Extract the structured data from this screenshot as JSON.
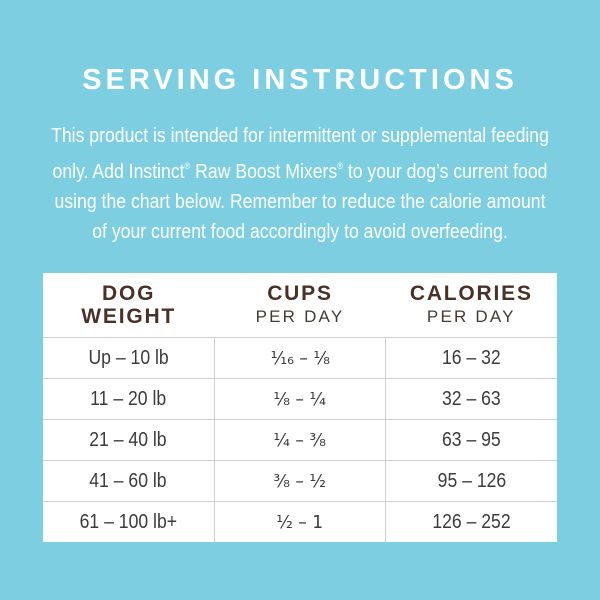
{
  "colors": {
    "background": "#7ECEE2",
    "panel": "#FFFFFF",
    "title_text": "#FFFFFF",
    "header_text": "#4A3128",
    "cell_text": "#3B3B3B",
    "divider": "#CFCFCF"
  },
  "title": "SERVING INSTRUCTIONS",
  "paragraph": {
    "lines": [
      [
        {
          "text": "This product is intended for intermittent or supplemental feeding"
        }
      ],
      [
        {
          "text": "only. Add Instinct"
        },
        {
          "text": "®",
          "sup": true
        },
        {
          "text": " Raw Boost Mixers"
        },
        {
          "text": "®",
          "sup": true
        },
        {
          "text": " to your dog’s current food"
        }
      ],
      [
        {
          "text": "using the chart below. Remember to reduce the calorie amount"
        }
      ],
      [
        {
          "text": "of your current food accordingly to avoid overfeeding."
        }
      ]
    ]
  },
  "table": {
    "columns": [
      {
        "main": "DOG\nWEIGHT",
        "sub": ""
      },
      {
        "main": "CUPS",
        "sub": "PER DAY"
      },
      {
        "main": "CALORIES",
        "sub": "PER DAY"
      }
    ],
    "rows": [
      {
        "weight": "Up – 10 lb",
        "cups": "¹⁄₁₆ – ¹⁄₈",
        "calories": "16 – 32"
      },
      {
        "weight": "11 – 20 lb",
        "cups": "¹⁄₈ – ¹⁄₄",
        "calories": "32 – 63"
      },
      {
        "weight": "21 – 40 lb",
        "cups": "¹⁄₄ – ³⁄₈",
        "calories": "63 – 95"
      },
      {
        "weight": "41 – 60 lb",
        "cups": "³⁄₈ – ¹⁄₂",
        "calories": "95 – 126"
      },
      {
        "weight": "61 – 100 lb+",
        "cups": "¹⁄₂ – 1",
        "calories": "126 – 252"
      }
    ]
  }
}
